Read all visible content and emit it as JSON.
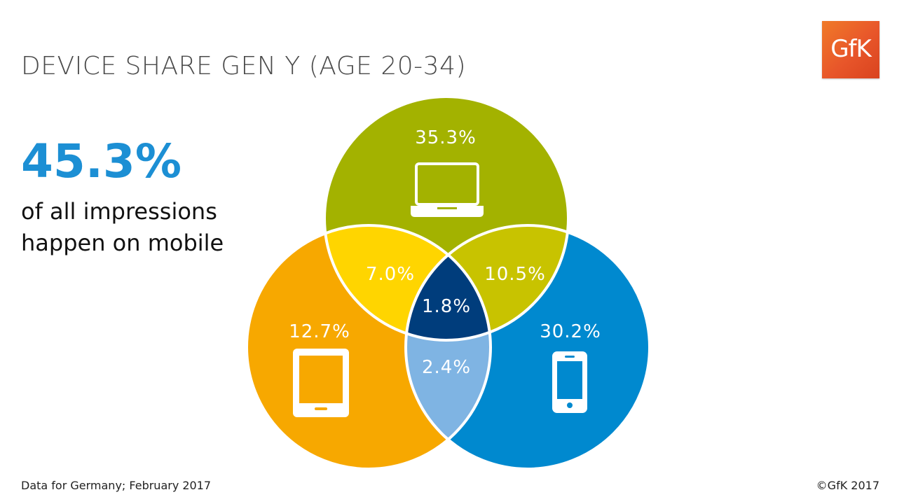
{
  "title": "DEVICE SHARE GEN Y (AGE 20-34)",
  "logo": {
    "text": "GfK",
    "color": "#e8562a"
  },
  "headline": {
    "value": "45.3%",
    "line1": "of all impressions",
    "line2": "happen on mobile",
    "color": "#1c8fd4"
  },
  "footnote": "Data for Germany; February 2017",
  "copyright": "©GfK 2017",
  "venn": {
    "sets": [
      {
        "id": "laptop",
        "icon": "laptop-icon",
        "share": "35.3%",
        "color": "#a3b200"
      },
      {
        "id": "tablet",
        "icon": "tablet-icon",
        "share": "12.7%",
        "color": "#f7a800"
      },
      {
        "id": "smartphone",
        "icon": "smartphone-icon",
        "share": "30.2%",
        "color": "#0089cf"
      }
    ],
    "overlaps": {
      "laptop_tablet": {
        "share": "7.0%",
        "color": "#ffd500"
      },
      "laptop_smartphone": {
        "share": "10.5%",
        "color": "#c8c300"
      },
      "tablet_smartphone": {
        "share": "2.4%",
        "color": "#7fb4e3"
      },
      "all": {
        "share": "1.8%",
        "color": "#003d7c"
      }
    }
  }
}
